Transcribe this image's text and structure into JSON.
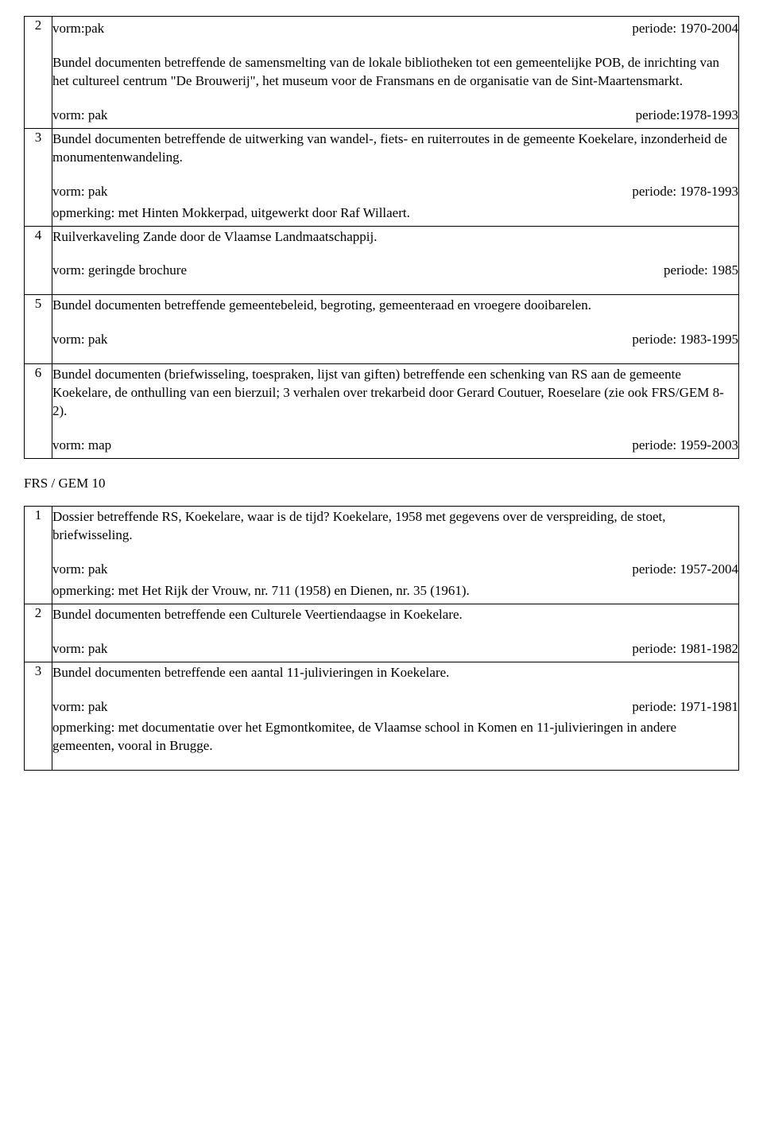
{
  "table1": {
    "rows": [
      {
        "num": "2",
        "showTopMeta": true,
        "top_vorm": "vorm:pak",
        "top_periode": "periode: 1970-2004",
        "body": "Bundel documenten betreffende de samensmelting van de lokale bibliotheken tot een gemeentelijke POB, de inrichting van het cultureel centrum \"De Brouwerij\", het museum voor de Fransmans en de organisatie van de Sint-Maartensmarkt.",
        "vorm": "vorm: pak",
        "periode": "periode:1978-1993",
        "remark": ""
      },
      {
        "num": "3",
        "body": "Bundel documenten betreffende de uitwerking van wandel-, fiets- en ruiterroutes in de gemeente Koekelare, inzonderheid de monumentenwandeling.",
        "vorm": "vorm: pak",
        "periode": "periode: 1978-1993",
        "remark": "opmerking: met Hinten Mokkerpad, uitgewerkt door Raf Willaert."
      },
      {
        "num": "4",
        "body": "Ruilverkaveling Zande door de Vlaamse Landmaatschappij.",
        "vorm": "vorm: geringde brochure",
        "periode": "periode: 1985",
        "remark": "",
        "extraBottom": true
      },
      {
        "num": "5",
        "body": "Bundel documenten betreffende gemeentebeleid, begroting, gemeenteraad en vroegere dooibarelen.",
        "vorm": "vorm: pak",
        "periode": "periode: 1983-1995",
        "remark": "",
        "extraBottom": true
      },
      {
        "num": "6",
        "body": "Bundel documenten (briefwisseling, toespraken, lijst van giften) betreffende een schenking van RS aan de gemeente Koekelare, de onthulling van een bierzuil; 3 verhalen over trekarbeid door Gerard Coutuer, Roeselare (zie ook FRS/GEM 8-2).",
        "vorm": "vorm: map",
        "periode": "periode: 1959-2003",
        "remark": ""
      }
    ]
  },
  "heading": "FRS / GEM 10",
  "table2": {
    "rows": [
      {
        "num": "1",
        "body": "Dossier betreffende RS, Koekelare, waar is de tijd? Koekelare, 1958 met gegevens over de verspreiding, de stoet, briefwisseling.",
        "vorm": "vorm: pak",
        "periode": "periode: 1957-2004",
        "remark": "opmerking: met Het Rijk der Vrouw, nr. 711 (1958) en Dienen,  nr. 35 (1961)."
      },
      {
        "num": "2",
        "body": "Bundel documenten betreffende een Culturele Veertiendaagse in Koekelare.",
        "vorm": "vorm: pak",
        "periode": "periode: 1981-1982",
        "remark": ""
      },
      {
        "num": "3",
        "body": "Bundel documenten betreffende een aantal 11-julivieringen in Koekelare.",
        "vorm": "vorm: pak",
        "periode": "periode: 1971-1981",
        "remark": "opmerking: met documentatie over het Egmontkomitee, de Vlaamse school in Komen en 11-julivieringen in andere gemeenten, vooral in Brugge."
      }
    ]
  }
}
